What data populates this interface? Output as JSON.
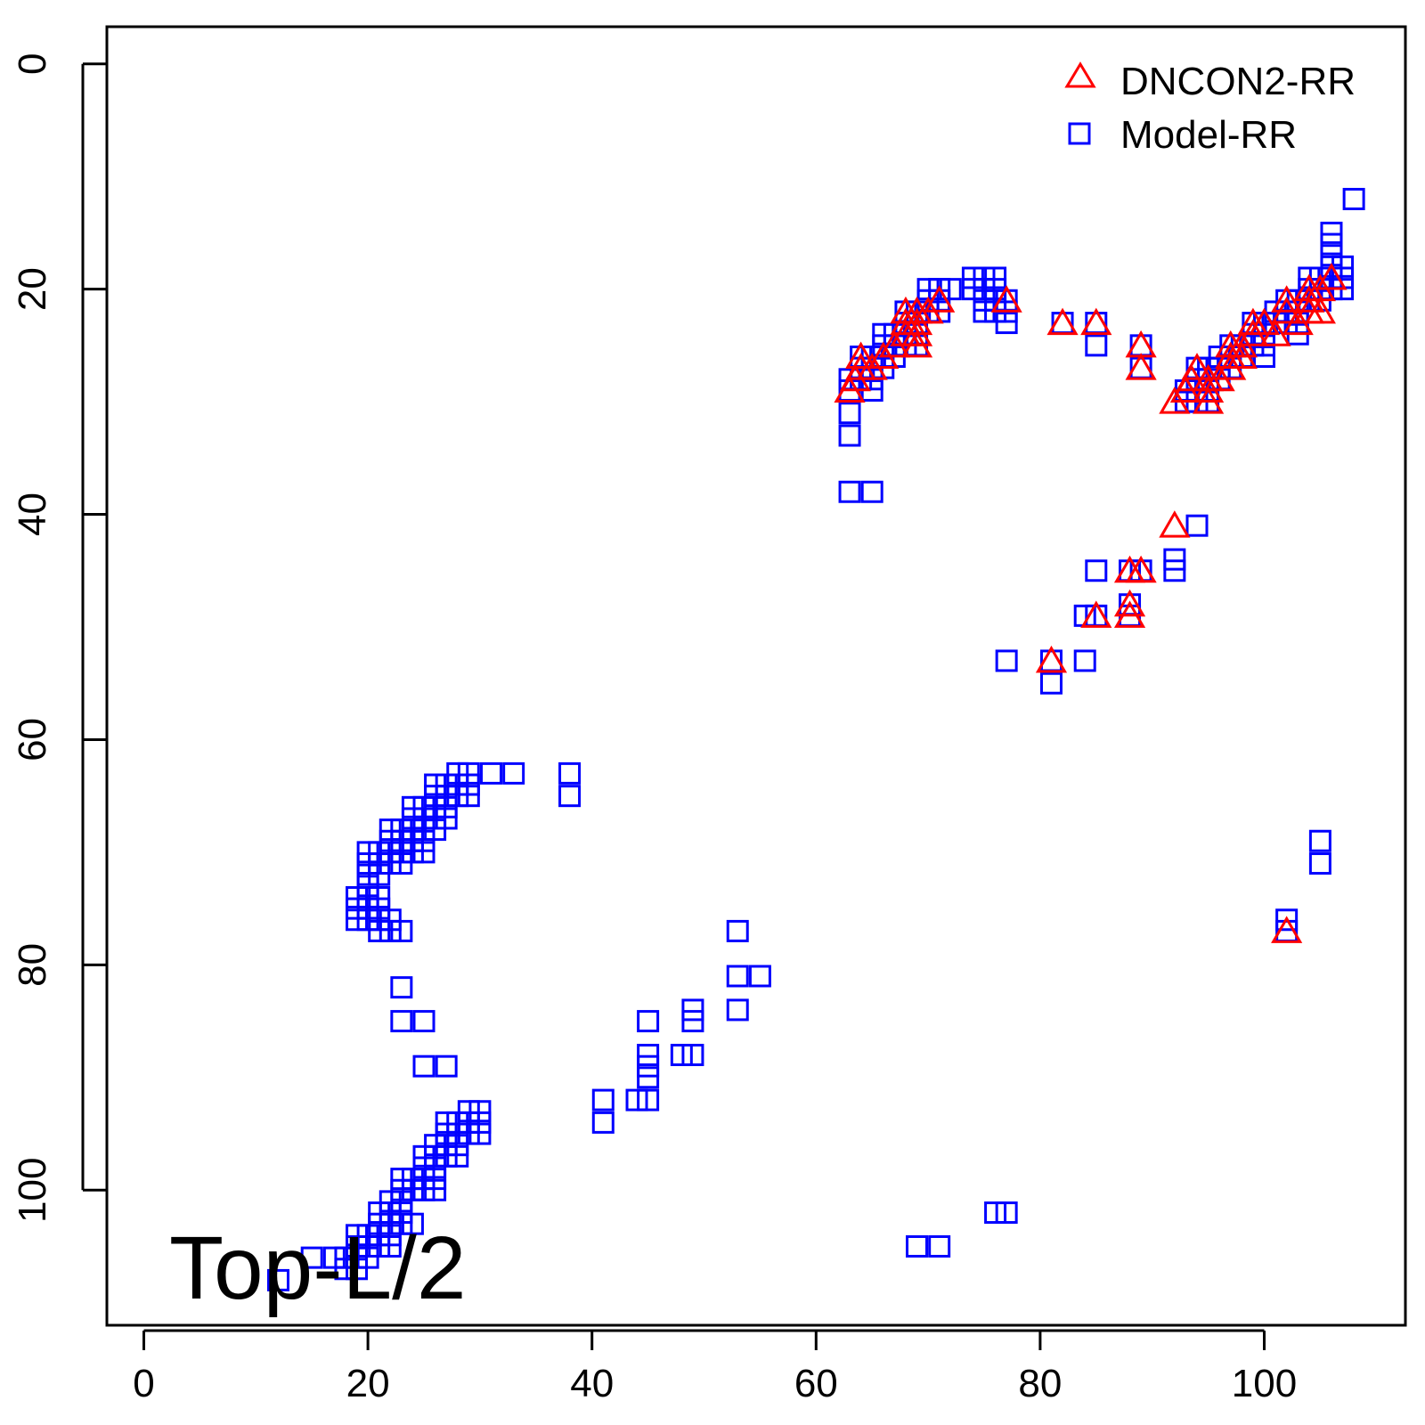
{
  "chart_data": {
    "type": "scatter",
    "xlim": [
      -3.3,
      112.6
    ],
    "ylim": [
      -3.3,
      112
    ],
    "y_reversed": true,
    "xticks": [
      0,
      20,
      40,
      60,
      80,
      100
    ],
    "yticks": [
      0,
      20,
      40,
      60,
      80,
      100
    ],
    "xtick_labels": [
      "0",
      "20",
      "40",
      "60",
      "80",
      "100"
    ],
    "ytick_labels": [
      "0",
      "20",
      "40",
      "60",
      "80",
      "100"
    ],
    "grid": false,
    "legend_position": "top-right",
    "annotation": "Top-L/2",
    "series": [
      {
        "name": "DNCON2-RR",
        "marker": "triangle-open",
        "color": "#ff0000",
        "points": [
          [
            63,
            29
          ],
          [
            63.5,
            28
          ],
          [
            64,
            27
          ],
          [
            64,
            26
          ],
          [
            65,
            27
          ],
          [
            66,
            26
          ],
          [
            67,
            25
          ],
          [
            68,
            24
          ],
          [
            68,
            23
          ],
          [
            68,
            22
          ],
          [
            69,
            25
          ],
          [
            69,
            24
          ],
          [
            69,
            23
          ],
          [
            69,
            22
          ],
          [
            70,
            22
          ],
          [
            71,
            21
          ],
          [
            77,
            21
          ],
          [
            82,
            23
          ],
          [
            85,
            23
          ],
          [
            89,
            25
          ],
          [
            89,
            27
          ],
          [
            92,
            30
          ],
          [
            93,
            29
          ],
          [
            93.5,
            28
          ],
          [
            94,
            27
          ],
          [
            95,
            30
          ],
          [
            95,
            29
          ],
          [
            95,
            28
          ],
          [
            96,
            28
          ],
          [
            97,
            27
          ],
          [
            97,
            26
          ],
          [
            97,
            25
          ],
          [
            98,
            26
          ],
          [
            98,
            25
          ],
          [
            99,
            24
          ],
          [
            99,
            23
          ],
          [
            100,
            23
          ],
          [
            101,
            24
          ],
          [
            102,
            22
          ],
          [
            102,
            21
          ],
          [
            103,
            23
          ],
          [
            104,
            22
          ],
          [
            104,
            21
          ],
          [
            104,
            20
          ],
          [
            105,
            20
          ],
          [
            105,
            22
          ],
          [
            106,
            19
          ],
          [
            92,
            41
          ],
          [
            88,
            45
          ],
          [
            89,
            45
          ],
          [
            88,
            48
          ],
          [
            85,
            49
          ],
          [
            88,
            49
          ],
          [
            81,
            53
          ],
          [
            102,
            77
          ]
        ]
      },
      {
        "name": "Model-RR",
        "marker": "square-open",
        "color": "#0000ff",
        "points": [
          [
            63,
            28
          ],
          [
            63,
            29
          ],
          [
            63,
            31
          ],
          [
            63,
            33
          ],
          [
            63,
            38
          ],
          [
            65,
            38
          ],
          [
            64,
            26
          ],
          [
            64,
            27
          ],
          [
            64,
            28
          ],
          [
            65,
            26
          ],
          [
            65,
            27
          ],
          [
            65,
            28
          ],
          [
            65,
            29
          ],
          [
            66,
            24
          ],
          [
            66,
            25
          ],
          [
            66,
            26
          ],
          [
            66,
            27
          ],
          [
            67,
            24
          ],
          [
            67,
            25
          ],
          [
            67,
            26
          ],
          [
            68,
            22
          ],
          [
            68,
            23
          ],
          [
            68,
            24
          ],
          [
            68,
            25
          ],
          [
            69,
            22
          ],
          [
            69,
            23
          ],
          [
            69,
            24
          ],
          [
            69,
            25
          ],
          [
            70,
            20
          ],
          [
            70,
            21
          ],
          [
            70,
            22
          ],
          [
            71,
            20
          ],
          [
            71,
            21
          ],
          [
            71,
            22
          ],
          [
            72,
            20
          ],
          [
            74,
            19
          ],
          [
            74,
            20
          ],
          [
            75,
            19
          ],
          [
            75,
            20
          ],
          [
            75,
            21
          ],
          [
            75,
            22
          ],
          [
            76,
            19
          ],
          [
            76,
            20
          ],
          [
            76,
            21
          ],
          [
            76,
            22
          ],
          [
            77,
            21
          ],
          [
            77,
            22
          ],
          [
            77,
            23
          ],
          [
            82,
            23
          ],
          [
            85,
            23
          ],
          [
            85,
            25
          ],
          [
            89,
            25
          ],
          [
            89,
            27
          ],
          [
            93,
            29
          ],
          [
            93,
            30
          ],
          [
            94,
            27
          ],
          [
            94,
            28
          ],
          [
            94,
            29
          ],
          [
            94,
            30
          ],
          [
            95,
            27
          ],
          [
            95,
            28
          ],
          [
            95,
            29
          ],
          [
            95,
            30
          ],
          [
            96,
            26
          ],
          [
            96,
            27
          ],
          [
            96,
            28
          ],
          [
            97,
            25
          ],
          [
            97,
            26
          ],
          [
            97,
            27
          ],
          [
            98,
            25
          ],
          [
            98,
            26
          ],
          [
            99,
            23
          ],
          [
            99,
            24
          ],
          [
            99,
            25
          ],
          [
            100,
            23
          ],
          [
            100,
            24
          ],
          [
            100,
            25
          ],
          [
            100,
            26
          ],
          [
            101,
            22
          ],
          [
            101,
            23
          ],
          [
            102,
            21
          ],
          [
            102,
            22
          ],
          [
            102,
            23
          ],
          [
            103,
            21
          ],
          [
            103,
            22
          ],
          [
            103,
            23
          ],
          [
            103,
            24
          ],
          [
            104,
            19
          ],
          [
            104,
            20
          ],
          [
            104,
            21
          ],
          [
            105,
            19
          ],
          [
            105,
            20
          ],
          [
            105,
            21
          ],
          [
            106,
            15
          ],
          [
            106,
            16
          ],
          [
            106,
            17
          ],
          [
            106,
            18
          ],
          [
            106,
            19
          ],
          [
            106,
            20
          ],
          [
            107,
            18
          ],
          [
            107,
            19
          ],
          [
            107,
            20
          ],
          [
            108,
            12
          ],
          [
            94,
            41
          ],
          [
            92,
            44
          ],
          [
            92,
            45
          ],
          [
            85,
            45
          ],
          [
            88,
            45
          ],
          [
            89,
            45
          ],
          [
            84,
            49
          ],
          [
            85,
            49
          ],
          [
            88,
            48
          ],
          [
            88,
            49
          ],
          [
            77,
            53
          ],
          [
            81,
            53
          ],
          [
            84,
            53
          ],
          [
            81,
            55
          ],
          [
            102,
            76
          ],
          [
            102,
            77
          ],
          [
            105,
            69
          ],
          [
            105,
            71
          ],
          [
            38,
            63
          ],
          [
            38,
            65
          ],
          [
            33,
            63
          ],
          [
            31,
            63
          ],
          [
            29,
            63
          ],
          [
            29,
            64
          ],
          [
            29,
            65
          ],
          [
            28,
            63
          ],
          [
            28,
            64
          ],
          [
            28,
            65
          ],
          [
            27,
            64
          ],
          [
            27,
            65
          ],
          [
            27,
            66
          ],
          [
            27,
            67
          ],
          [
            26,
            64
          ],
          [
            26,
            65
          ],
          [
            26,
            66
          ],
          [
            26,
            67
          ],
          [
            26,
            68
          ],
          [
            25,
            66
          ],
          [
            25,
            67
          ],
          [
            25,
            68
          ],
          [
            25,
            69
          ],
          [
            25,
            70
          ],
          [
            24,
            66
          ],
          [
            24,
            67
          ],
          [
            24,
            68
          ],
          [
            24,
            69
          ],
          [
            24,
            70
          ],
          [
            23,
            68
          ],
          [
            23,
            69
          ],
          [
            23,
            70
          ],
          [
            23,
            71
          ],
          [
            22,
            68
          ],
          [
            22,
            69
          ],
          [
            22,
            70
          ],
          [
            22,
            71
          ],
          [
            21,
            70
          ],
          [
            21,
            71
          ],
          [
            21,
            72
          ],
          [
            20,
            70
          ],
          [
            20,
            71
          ],
          [
            20,
            72
          ],
          [
            20,
            73
          ],
          [
            19,
            74
          ],
          [
            19,
            75
          ],
          [
            19,
            76
          ],
          [
            20,
            74
          ],
          [
            20,
            75
          ],
          [
            20,
            76
          ],
          [
            21,
            74
          ],
          [
            21,
            75
          ],
          [
            21,
            76
          ],
          [
            21,
            77
          ],
          [
            22,
            76
          ],
          [
            22,
            77
          ],
          [
            23,
            77
          ],
          [
            23,
            82
          ],
          [
            23,
            85
          ],
          [
            25,
            85
          ],
          [
            25,
            89
          ],
          [
            27,
            89
          ],
          [
            30,
            93
          ],
          [
            30,
            94
          ],
          [
            30,
            95
          ],
          [
            29,
            93
          ],
          [
            29,
            94
          ],
          [
            29,
            95
          ],
          [
            28,
            94
          ],
          [
            28,
            95
          ],
          [
            28,
            96
          ],
          [
            28,
            97
          ],
          [
            27,
            94
          ],
          [
            27,
            95
          ],
          [
            27,
            96
          ],
          [
            27,
            97
          ],
          [
            26,
            96
          ],
          [
            26,
            97
          ],
          [
            26,
            98
          ],
          [
            26,
            99
          ],
          [
            26,
            100
          ],
          [
            25,
            97
          ],
          [
            25,
            98
          ],
          [
            25,
            99
          ],
          [
            25,
            100
          ],
          [
            24,
            99
          ],
          [
            24,
            100
          ],
          [
            23,
            99
          ],
          [
            23,
            100
          ],
          [
            23,
            101
          ],
          [
            23,
            102
          ],
          [
            23,
            103
          ],
          [
            22,
            101
          ],
          [
            22,
            102
          ],
          [
            22,
            103
          ],
          [
            22,
            104
          ],
          [
            22,
            105
          ],
          [
            21,
            102
          ],
          [
            21,
            103
          ],
          [
            21,
            104
          ],
          [
            21,
            105
          ],
          [
            20,
            104
          ],
          [
            20,
            105
          ],
          [
            20,
            106
          ],
          [
            19,
            104
          ],
          [
            19,
            105
          ],
          [
            19,
            106
          ],
          [
            19,
            107
          ],
          [
            18,
            106
          ],
          [
            18,
            107
          ],
          [
            17,
            106
          ],
          [
            15,
            106
          ],
          [
            12,
            108
          ],
          [
            24,
            103
          ],
          [
            53,
            77
          ],
          [
            53,
            81
          ],
          [
            55,
            81
          ],
          [
            53,
            84
          ],
          [
            49,
            84
          ],
          [
            49,
            85
          ],
          [
            49,
            88
          ],
          [
            48,
            88
          ],
          [
            45,
            85
          ],
          [
            45,
            88
          ],
          [
            45,
            89
          ],
          [
            45,
            90
          ],
          [
            45,
            92
          ],
          [
            44,
            92
          ],
          [
            41,
            92
          ],
          [
            41,
            94
          ],
          [
            69,
            105
          ],
          [
            71,
            105
          ],
          [
            76,
            102
          ],
          [
            77,
            102
          ]
        ]
      }
    ]
  }
}
